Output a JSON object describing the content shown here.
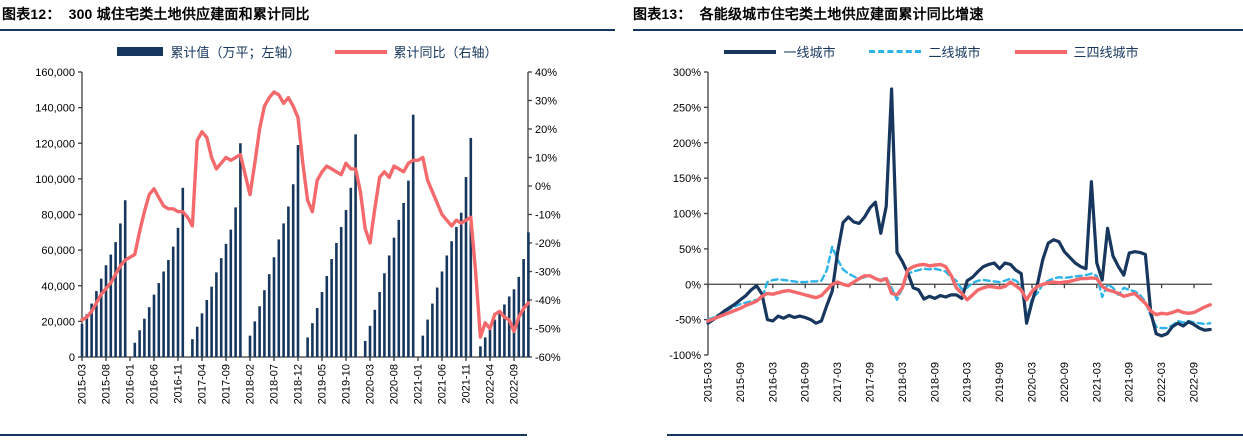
{
  "chart_data": [
    {
      "id": "fig12",
      "type": "bar+line",
      "title_prefix": "图表12：",
      "title": "300 城住宅类土地供应建面和累计同比",
      "legend": [
        {
          "label": "累计值（万平；左轴）",
          "swatch": "bar",
          "color": "#17375e"
        },
        {
          "label": "累计同比（右轴）",
          "swatch": "line",
          "color": "#f4696b"
        }
      ],
      "months_start": "2015-03",
      "months_end": "2022-12",
      "x_tick_every_months": 5,
      "x_tick_labels": [
        "2015-03",
        "2015-08",
        "2016-01",
        "2016-06",
        "2016-11",
        "2017-04",
        "2017-09",
        "2018-02",
        "2018-07",
        "2018-12",
        "2019-05",
        "2019-10",
        "2020-03",
        "2020-08",
        "2021-01",
        "2021-06",
        "2021-11",
        "2022-04",
        "2022-09"
      ],
      "left_axis": {
        "min": 0,
        "max": 160000,
        "step": 20000,
        "tick_labels_top_to_bottom": [
          "160,000",
          "140,000",
          "120,000",
          "100,000",
          "80,000",
          "60,000",
          "40,000",
          "20,000",
          "0"
        ]
      },
      "right_axis": {
        "min": -60,
        "max": 40,
        "step": 10,
        "tick_labels_top_to_bottom": [
          "40%",
          "30%",
          "20%",
          "10%",
          "0%",
          "-10%",
          "-20%",
          "-30%",
          "-40%",
          "-50%",
          "-60%"
        ]
      },
      "bar_series": {
        "name": "累计值（万平；左轴）",
        "unit": "万平",
        "color": "#17375e",
        "values_by_month": [
          18500,
          24000,
          30000,
          37000,
          44000,
          51500,
          57500,
          64500,
          75000,
          88000,
          null,
          8000,
          15000,
          21500,
          28000,
          35000,
          41500,
          48000,
          54500,
          62000,
          72500,
          95000,
          null,
          10000,
          17000,
          24500,
          32000,
          39500,
          47500,
          55500,
          63500,
          71500,
          84000,
          120000,
          null,
          12000,
          20000,
          28500,
          37500,
          46500,
          56000,
          66000,
          75000,
          84500,
          97000,
          119000,
          null,
          11000,
          19000,
          27500,
          36500,
          45500,
          55000,
          64000,
          73000,
          82500,
          95000,
          125000,
          null,
          9000,
          17500,
          26500,
          36500,
          47000,
          57000,
          67000,
          77000,
          86500,
          99000,
          136000,
          null,
          12000,
          21000,
          30000,
          39000,
          48000,
          57000,
          65000,
          73000,
          81000,
          101000,
          123000,
          null,
          6000,
          11000,
          16000,
          21000,
          25500,
          29500,
          34000,
          38000,
          45000,
          55000,
          70000
        ]
      },
      "line_series": {
        "name": "累计同比（右轴）",
        "unit": "%",
        "color": "#f4696b",
        "values_by_month": [
          -47,
          -46,
          -44,
          -41,
          -38,
          -36,
          -34,
          -31,
          -28,
          -26,
          -25,
          -24,
          -16,
          -9,
          -3,
          -1,
          -4,
          -7,
          -8,
          -8,
          -9,
          -9,
          -11,
          -14,
          16,
          19,
          17,
          10,
          6,
          8,
          10,
          9,
          10,
          11,
          4,
          -3,
          8,
          20,
          28,
          31,
          33,
          32,
          29,
          31,
          28,
          24,
          8,
          -5,
          -9,
          2,
          5,
          7,
          6,
          5,
          4,
          8,
          6,
          6,
          -2,
          -15,
          -20,
          -8,
          3,
          5,
          3,
          7,
          6,
          5,
          8,
          9,
          9,
          10,
          2,
          -2,
          -6,
          -10,
          -12,
          -14,
          -12,
          -13,
          -12,
          -11,
          -30,
          -53,
          -48,
          -50,
          -45,
          -44,
          -46,
          -47,
          -51,
          -46,
          -43,
          -41
        ]
      }
    },
    {
      "id": "fig13",
      "type": "line",
      "title_prefix": "图表13：",
      "title": "各能级城市住宅类土地供应建面累计同比增速",
      "legend": [
        {
          "label": "一线城市",
          "swatch": "line-solid",
          "color": "#17375e"
        },
        {
          "label": "二线城市",
          "swatch": "line-dashed",
          "color": "#2fb4e9"
        },
        {
          "label": "三四线城市",
          "swatch": "line-solid",
          "color": "#f4696b"
        }
      ],
      "months_start": "2015-03",
      "months_end": "2022-12",
      "x_tick_every_months": 6,
      "x_tick_labels": [
        "2015-03",
        "2015-09",
        "2016-03",
        "2016-09",
        "2017-03",
        "2017-09",
        "2018-03",
        "2018-09",
        "2019-03",
        "2019-09",
        "2020-03",
        "2020-09",
        "2021-03",
        "2021-09",
        "2022-03",
        "2022-09"
      ],
      "y_axis": {
        "min": -100,
        "max": 300,
        "step": 50,
        "tick_labels_top_to_bottom": [
          "300%",
          "250%",
          "200%",
          "150%",
          "100%",
          "50%",
          "0%",
          "-50%",
          "-100%"
        ]
      },
      "series": [
        {
          "name": "一线城市",
          "style": "solid",
          "color": "#17375e",
          "width": 3.2,
          "values_by_month": [
            -55,
            -50,
            -44,
            -38,
            -33,
            -28,
            -22,
            -16,
            -8,
            -2,
            -14,
            -50,
            -52,
            -45,
            -48,
            -44,
            -47,
            -45,
            -47,
            -50,
            -55,
            -52,
            -30,
            -10,
            45,
            87,
            95,
            88,
            86,
            95,
            108,
            116,
            72,
            110,
            276,
            45,
            32,
            16,
            -5,
            -8,
            -21,
            -17,
            -20,
            -16,
            -18,
            -15,
            -15,
            -20,
            5,
            10,
            18,
            25,
            28,
            30,
            22,
            30,
            28,
            20,
            15,
            -55,
            -25,
            0,
            35,
            58,
            63,
            60,
            46,
            38,
            30,
            25,
            22,
            145,
            30,
            6,
            79,
            40,
            25,
            13,
            44,
            46,
            45,
            42,
            -40,
            -70,
            -73,
            -70,
            -60,
            -55,
            -59,
            -53,
            -57,
            -62,
            -65,
            -64
          ]
        },
        {
          "name": "二线城市",
          "style": "dashed",
          "color": "#2fb4e9",
          "width": 2.4,
          "values_by_month": [
            -50,
            -47,
            -43,
            -39,
            -35,
            -31,
            -28,
            -26,
            -24,
            -22,
            -20,
            3,
            6,
            7,
            6,
            5,
            4,
            3,
            3,
            4,
            4,
            5,
            20,
            53,
            35,
            21,
            15,
            11,
            8,
            10,
            12,
            8,
            6,
            10,
            -5,
            -22,
            -5,
            15,
            18,
            20,
            22,
            21,
            22,
            20,
            18,
            10,
            5,
            -7,
            -5,
            2,
            5,
            6,
            5,
            4,
            3,
            5,
            8,
            5,
            0,
            -50,
            -20,
            -13,
            0,
            5,
            8,
            10,
            9,
            10,
            11,
            12,
            13,
            15,
            12,
            -18,
            0,
            -5,
            -15,
            -5,
            -8,
            -10,
            -15,
            -25,
            -45,
            -60,
            -62,
            -62,
            -58,
            -52,
            -54,
            -52,
            -54,
            -55,
            -56,
            -55
          ]
        },
        {
          "name": "三四线城市",
          "style": "solid",
          "color": "#f4696b",
          "width": 3.4,
          "values_by_month": [
            -52,
            -49,
            -46,
            -43,
            -40,
            -37,
            -34,
            -30,
            -27,
            -24,
            -17,
            -13,
            -14,
            -12,
            -10,
            -9,
            -11,
            -13,
            -15,
            -17,
            -19,
            -16,
            -8,
            0,
            3,
            0,
            -2,
            3,
            8,
            12,
            12,
            8,
            5,
            8,
            -13,
            -15,
            -5,
            20,
            25,
            27,
            28,
            26,
            27,
            28,
            25,
            13,
            -5,
            -13,
            -22,
            -15,
            -8,
            -5,
            -3,
            -4,
            -5,
            -3,
            3,
            -2,
            -8,
            -22,
            -10,
            -3,
            0,
            2,
            3,
            2,
            3,
            4,
            6,
            8,
            8,
            9,
            8,
            -3,
            -8,
            -10,
            -13,
            -17,
            -15,
            -13,
            -20,
            -27,
            -38,
            -43,
            -41,
            -42,
            -40,
            -37,
            -40,
            -41,
            -40,
            -36,
            -32,
            -29
          ]
        }
      ]
    }
  ]
}
